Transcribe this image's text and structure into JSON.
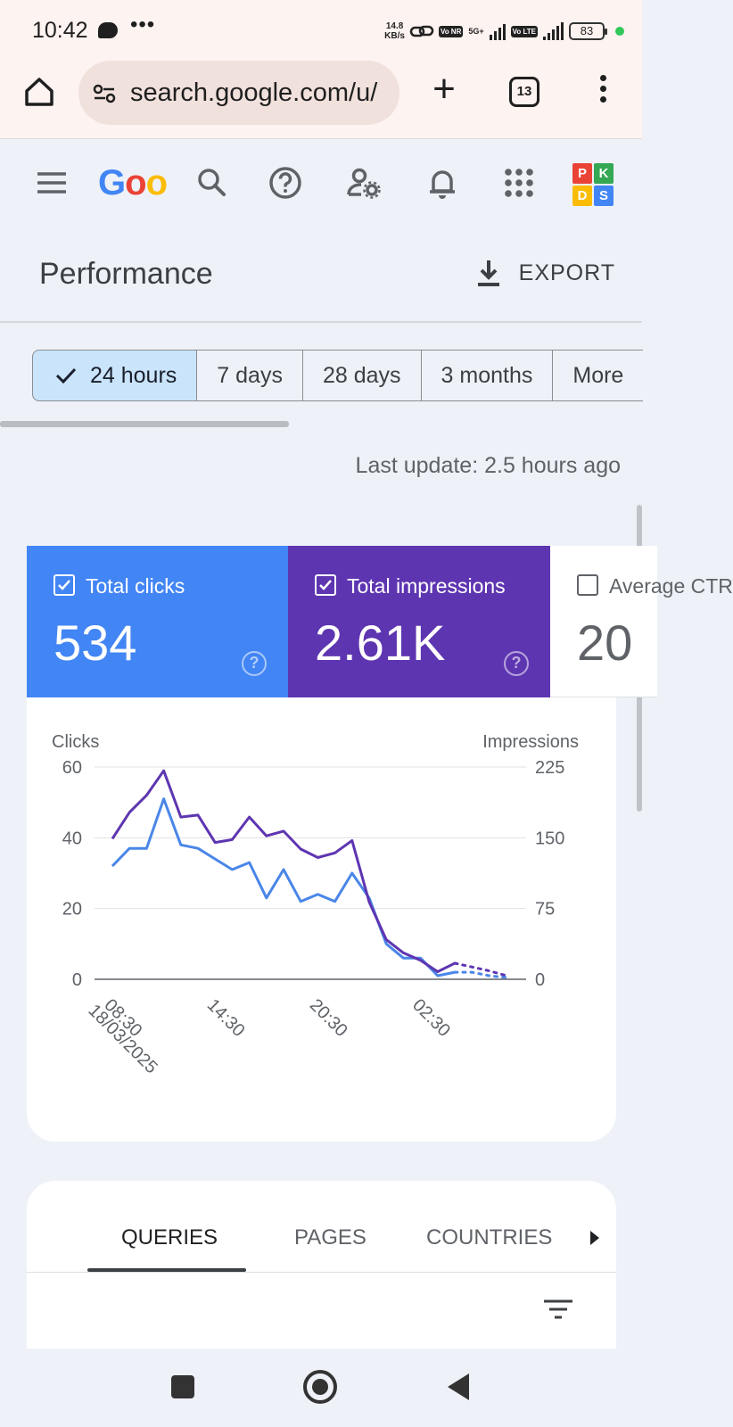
{
  "status_bar": {
    "time": "10:42",
    "speed_value": "14.8",
    "speed_unit": "KB/s",
    "network_1": "5G+",
    "volte_1": "Vo NR",
    "volte_2": "Vo LTE",
    "battery": "83"
  },
  "browser": {
    "url": "search.google.com/u/",
    "tab_count": "13"
  },
  "app": {
    "logo_text": "Goo",
    "logo_colors": [
      "#4285f4",
      "#ea4335",
      "#fbbc05"
    ],
    "avatar_letters": [
      "P",
      "K",
      "D",
      "S"
    ],
    "avatar_colors": [
      "#ea4335",
      "#34a853",
      "#fbbc05",
      "#4285f4"
    ]
  },
  "page": {
    "title": "Performance",
    "export_label": "EXPORT",
    "last_update": "Last update: 2.5 hours ago"
  },
  "date_ranges": [
    {
      "label": "24 hours",
      "selected": true
    },
    {
      "label": "7 days",
      "selected": false
    },
    {
      "label": "28 days",
      "selected": false
    },
    {
      "label": "3 months",
      "selected": false
    },
    {
      "label": "More",
      "selected": false
    }
  ],
  "metrics": [
    {
      "label": "Total clicks",
      "value": "534",
      "checked": true,
      "color": "#4285f4"
    },
    {
      "label": "Total impressions",
      "value": "2.61K",
      "checked": true,
      "color": "#5e35b1"
    },
    {
      "label": "Average CTR",
      "value": "20",
      "checked": false,
      "color": "#ffffff"
    }
  ],
  "chart_data": {
    "type": "line",
    "ylabel_left": "Clicks",
    "ylabel_right": "Impressions",
    "ylim_left": [
      0,
      60
    ],
    "ylim_right": [
      0,
      225
    ],
    "yticks_left": [
      0,
      20,
      40,
      60
    ],
    "yticks_right": [
      0,
      75,
      150,
      225
    ],
    "xtick_labels": [
      "08:30",
      "14:30",
      "20:30",
      "02:30"
    ],
    "xtick_date": "18/03/2025",
    "grid": true,
    "series": [
      {
        "name": "Clicks",
        "color": "#4a86e8",
        "axis": "left",
        "values": [
          32,
          37,
          37,
          51,
          38,
          37,
          34,
          31,
          33,
          23,
          31,
          22,
          24,
          22,
          30,
          23,
          10,
          6,
          6,
          1,
          2
        ],
        "partial_values": [
          2,
          1,
          0.5
        ]
      },
      {
        "name": "Impressions",
        "color": "#5e35b1",
        "axis": "right",
        "values": [
          149,
          177,
          195,
          221,
          172,
          174,
          145,
          148,
          172,
          152,
          157,
          138,
          129,
          134,
          147,
          82,
          42,
          28,
          20,
          8,
          17
        ],
        "partial_values": [
          13,
          9,
          4
        ]
      }
    ]
  },
  "tabs": [
    {
      "label": "QUERIES",
      "active": true
    },
    {
      "label": "PAGES",
      "active": false
    },
    {
      "label": "COUNTRIES",
      "active": false
    }
  ]
}
